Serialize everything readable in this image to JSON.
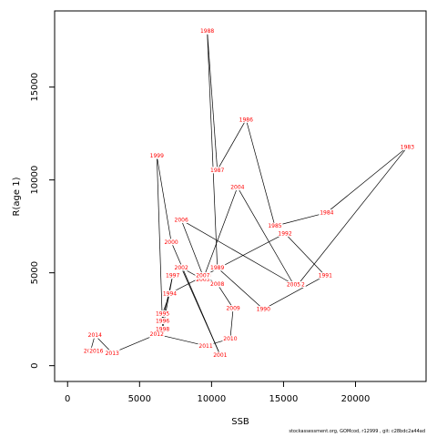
{
  "chart_data": {
    "type": "scatter",
    "title": "",
    "xlabel": "SSB",
    "ylabel": "R(age 1)",
    "xlim": [
      -900,
      24900
    ],
    "ylim": [
      -850,
      19100
    ],
    "xticks": [
      0,
      5000,
      10000,
      15000,
      20000
    ],
    "yticks": [
      0,
      5000,
      10000,
      15000
    ],
    "grid": false,
    "connected_path": true,
    "point_label_color": "#ff0000",
    "line_color": "#000000",
    "points": [
      {
        "label": "1982",
        "x": 16000,
        "y": 4370
      },
      {
        "label": "1983",
        "x": 23600,
        "y": 11770
      },
      {
        "label": "1984",
        "x": 18000,
        "y": 8240
      },
      {
        "label": "1985",
        "x": 14400,
        "y": 7520
      },
      {
        "label": "1986",
        "x": 12400,
        "y": 13250
      },
      {
        "label": "1987",
        "x": 10400,
        "y": 10530
      },
      {
        "label": "1988",
        "x": 9700,
        "y": 18010
      },
      {
        "label": "1989",
        "x": 10400,
        "y": 5280
      },
      {
        "label": "1990",
        "x": 13600,
        "y": 3040
      },
      {
        "label": "1991",
        "x": 17900,
        "y": 4850
      },
      {
        "label": "1992",
        "x": 15100,
        "y": 7120
      },
      {
        "label": "1993",
        "x": 9500,
        "y": 4850
      },
      {
        "label": "1994",
        "x": 7100,
        "y": 3890
      },
      {
        "label": "1995",
        "x": 6600,
        "y": 2800
      },
      {
        "label": "1996",
        "x": 6600,
        "y": 2410
      },
      {
        "label": "1997",
        "x": 7300,
        "y": 4850
      },
      {
        "label": "1998",
        "x": 6600,
        "y": 1970
      },
      {
        "label": "1999",
        "x": 6200,
        "y": 11300
      },
      {
        "label": "2000",
        "x": 7200,
        "y": 6660
      },
      {
        "label": "2001",
        "x": 10600,
        "y": 570
      },
      {
        "label": "2002",
        "x": 7900,
        "y": 5280
      },
      {
        "label": "2003",
        "x": 9400,
        "y": 4640
      },
      {
        "label": "2004",
        "x": 11800,
        "y": 9610
      },
      {
        "label": "2005",
        "x": 15700,
        "y": 4370
      },
      {
        "label": "2006",
        "x": 7900,
        "y": 7850
      },
      {
        "label": "2007",
        "x": 9400,
        "y": 4850
      },
      {
        "label": "2008",
        "x": 10400,
        "y": 4400
      },
      {
        "label": "2009",
        "x": 11500,
        "y": 3090
      },
      {
        "label": "2010",
        "x": 11300,
        "y": 1450
      },
      {
        "label": "2011",
        "x": 9600,
        "y": 1070
      },
      {
        "label": "2012",
        "x": 6200,
        "y": 1690
      },
      {
        "label": "2013",
        "x": 3100,
        "y": 680
      },
      {
        "label": "2014",
        "x": 1900,
        "y": 1640
      },
      {
        "label": "2015",
        "x": 1600,
        "y": 800
      },
      {
        "label": "2016",
        "x": 2000,
        "y": 780
      }
    ]
  },
  "footer": {
    "note": "stockassessment.org, GOMcod, r12999 , git: c28bdc2a44ad"
  }
}
